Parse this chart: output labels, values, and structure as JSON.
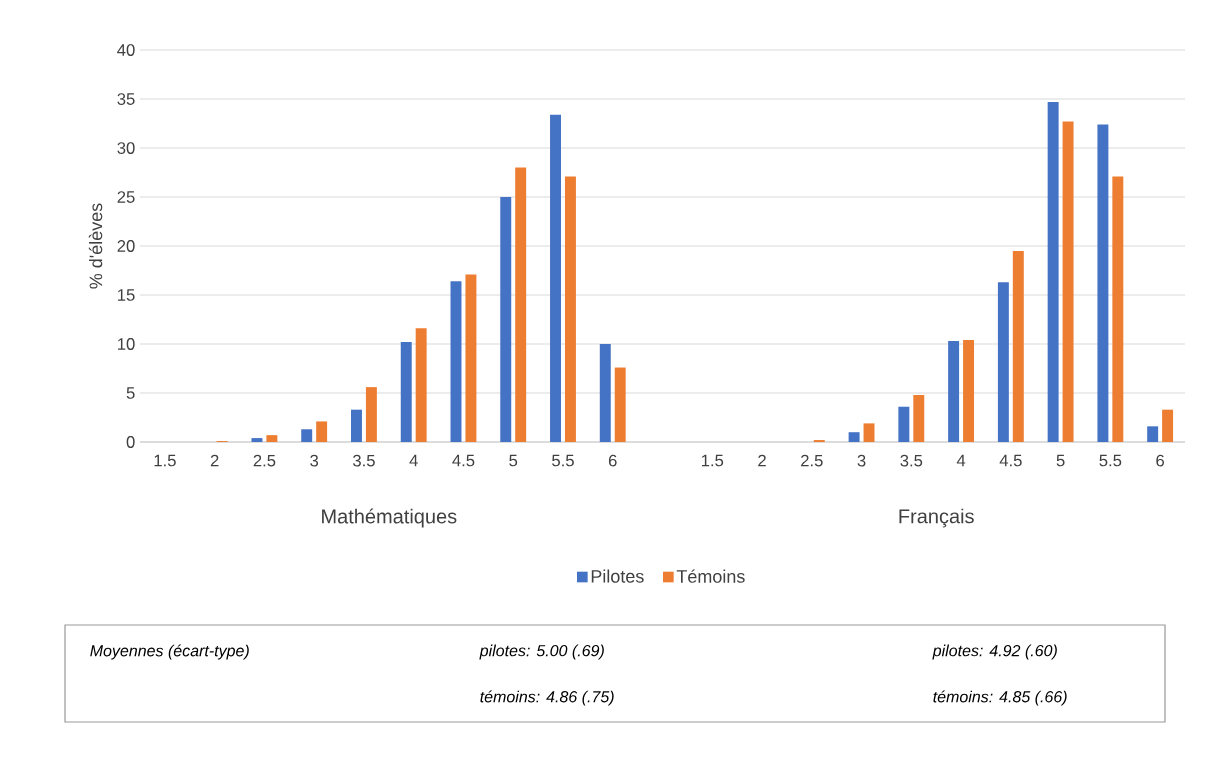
{
  "chart_data": {
    "type": "bar",
    "ylabel": "% d'élèves",
    "categories": [
      "1.5",
      "2",
      "2.5",
      "3",
      "3.5",
      "4",
      "4.5",
      "5",
      "5.5",
      "6",
      null,
      "1.5",
      "2",
      "2.5",
      "3",
      "3.5",
      "4",
      "4.5",
      "5",
      "5.5",
      "6"
    ],
    "series": [
      {
        "name": "Pilotes",
        "color": "#4472c4",
        "values": [
          0,
          0,
          0.4,
          1.3,
          3.3,
          10.2,
          16.4,
          25.0,
          33.4,
          10.0,
          null,
          0,
          0,
          0,
          1.0,
          3.6,
          10.3,
          16.3,
          34.7,
          32.4,
          1.6
        ]
      },
      {
        "name": "Témoins",
        "color": "#ed7d31",
        "values": [
          0,
          0.1,
          0.7,
          2.1,
          5.6,
          11.6,
          17.1,
          28.0,
          27.1,
          7.6,
          null,
          0,
          0,
          0.2,
          1.9,
          4.8,
          10.4,
          19.5,
          32.7,
          27.1,
          3.3
        ]
      }
    ],
    "ylim": [
      0,
      40
    ],
    "yticks": [
      0,
      5,
      10,
      15,
      20,
      25,
      30,
      35,
      40
    ],
    "grid": "y",
    "legend": "bottom",
    "annotations": [
      "Mathématiques",
      "Français",
      "*Moyennes (écart-type)*",
      "*pilotes:   5.00 (.69)*",
      "*pilotes:   4.92 (.60)*",
      "*témoins: 4.86 (.75)*",
      "*témoins: 4.85 (.66)*"
    ]
  }
}
